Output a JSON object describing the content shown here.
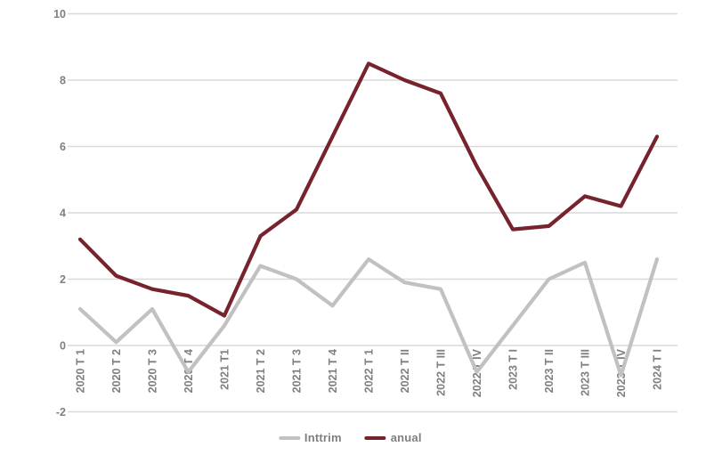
{
  "chart_data": {
    "type": "line",
    "title": "",
    "xlabel": "",
    "ylabel": "",
    "categories": [
      "2020 T 1",
      "2020 T 2",
      "2020 T 3",
      "2020 T 4",
      "2021 T1",
      "2021 T 2",
      "2021 T 3",
      "2021 T 4",
      "2022 T 1",
      "2022 T II",
      "2022 T III",
      "2022 T IV",
      "2023 T I",
      "2023 T II",
      "2023 T III",
      "2023 T IV",
      "2024 T I"
    ],
    "series": [
      {
        "name": "Inttrim",
        "color": "#c1c1c1",
        "values": [
          1.1,
          0.1,
          1.1,
          -0.8,
          0.6,
          2.4,
          2.0,
          1.2,
          2.6,
          1.9,
          1.7,
          -0.8,
          0.6,
          2.0,
          2.5,
          -0.9,
          2.6
        ]
      },
      {
        "name": "anual",
        "color": "#76232e",
        "values": [
          3.2,
          2.1,
          1.7,
          1.5,
          0.9,
          3.3,
          4.1,
          6.3,
          8.5,
          8.0,
          7.6,
          5.4,
          3.5,
          3.6,
          4.5,
          4.2,
          6.3
        ]
      }
    ],
    "ylim": [
      -2,
      10
    ],
    "yticks": [
      10,
      8,
      6,
      4,
      2,
      0,
      -2
    ],
    "grid": true,
    "legend_position": "bottom"
  },
  "style": {
    "background": "#ffffff",
    "gridline_color": "#d9d9d9",
    "axis_text_color": "#7f7f7f",
    "legend_text_color": "#7f7f7f"
  }
}
